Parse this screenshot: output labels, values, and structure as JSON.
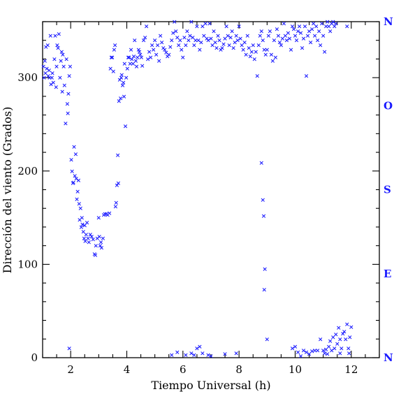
{
  "chart_data": {
    "type": "scatter",
    "title": "",
    "xlabel": "Tiempo Universal (h)",
    "ylabel": "Dirección del viento (Grados)",
    "xlim": [
      1,
      13
    ],
    "ylim": [
      0,
      360
    ],
    "xticks": [
      2,
      4,
      6,
      8,
      10,
      12
    ],
    "yticks": [
      0,
      100,
      200,
      300
    ],
    "right_axis_labels": [
      {
        "value": 0,
        "label": "N"
      },
      {
        "value": 90,
        "label": "E"
      },
      {
        "value": 180,
        "label": "S"
      },
      {
        "value": 270,
        "label": "O"
      },
      {
        "value": 360,
        "label": "N"
      }
    ],
    "grid": false,
    "marker": "x",
    "color": "#1a1aff",
    "series": [
      {
        "points": [
          [
            1.03,
            312
          ],
          [
            1.05,
            300
          ],
          [
            1.08,
            318
          ],
          [
            1.1,
            305
          ],
          [
            1.12,
            333
          ],
          [
            1.15,
            310
          ],
          [
            1.18,
            335
          ],
          [
            1.2,
            302
          ],
          [
            1.23,
            308
          ],
          [
            1.25,
            300
          ],
          [
            1.28,
            345
          ],
          [
            1.3,
            293
          ],
          [
            1.33,
            300
          ],
          [
            1.35,
            305
          ],
          [
            1.38,
            295
          ],
          [
            1.42,
            320
          ],
          [
            1.45,
            345
          ],
          [
            1.48,
            290
          ],
          [
            1.5,
            312
          ],
          [
            1.52,
            335
          ],
          [
            1.55,
            332
          ],
          [
            1.58,
            347
          ],
          [
            1.62,
            300
          ],
          [
            1.65,
            318
          ],
          [
            1.68,
            328
          ],
          [
            1.7,
            285
          ],
          [
            1.72,
            325
          ],
          [
            1.75,
            312
          ],
          [
            1.78,
            292
          ],
          [
            1.82,
            251
          ],
          [
            1.85,
            320
          ],
          [
            1.88,
            272
          ],
          [
            1.9,
            262
          ],
          [
            1.92,
            283
          ],
          [
            1.95,
            302
          ],
          [
            1.98,
            312
          ],
          [
            2.02,
            212
          ],
          [
            2.05,
            200
          ],
          [
            2.08,
            187
          ],
          [
            2.1,
            188
          ],
          [
            2.12,
            226
          ],
          [
            2.15,
            195
          ],
          [
            2.18,
            218
          ],
          [
            2.2,
            192
          ],
          [
            2.22,
            170
          ],
          [
            2.25,
            178
          ],
          [
            2.28,
            190
          ],
          [
            2.3,
            165
          ],
          [
            2.32,
            148
          ],
          [
            2.35,
            160
          ],
          [
            2.38,
            140
          ],
          [
            2.4,
            150
          ],
          [
            2.42,
            143
          ],
          [
            2.45,
            135
          ],
          [
            2.48,
            128
          ],
          [
            2.5,
            142
          ],
          [
            2.52,
            125
          ],
          [
            2.55,
            132
          ],
          [
            2.58,
            145
          ],
          [
            2.62,
            128
          ],
          [
            2.65,
            124
          ],
          [
            2.7,
            132
          ],
          [
            2.75,
            130
          ],
          [
            2.8,
            127
          ],
          [
            2.85,
            111
          ],
          [
            2.88,
            110
          ],
          [
            2.9,
            120
          ],
          [
            2.95,
            128
          ],
          [
            3.0,
            150
          ],
          [
            3.02,
            130
          ],
          [
            3.05,
            120
          ],
          [
            3.08,
            124
          ],
          [
            3.1,
            118
          ],
          [
            3.15,
            128
          ],
          [
            3.18,
            153
          ],
          [
            3.22,
            154
          ],
          [
            3.28,
            154
          ],
          [
            3.32,
            153
          ],
          [
            3.38,
            155
          ],
          [
            3.42,
            310
          ],
          [
            3.45,
            322
          ],
          [
            3.48,
            322
          ],
          [
            3.52,
            307
          ],
          [
            3.55,
            330
          ],
          [
            3.58,
            335
          ],
          [
            3.6,
            162
          ],
          [
            3.62,
            166
          ],
          [
            3.65,
            185
          ],
          [
            3.68,
            217
          ],
          [
            3.7,
            187
          ],
          [
            3.72,
            275
          ],
          [
            3.75,
            298
          ],
          [
            3.78,
            278
          ],
          [
            3.8,
            300
          ],
          [
            3.82,
            303
          ],
          [
            3.85,
            292
          ],
          [
            3.88,
            295
          ],
          [
            3.9,
            280
          ],
          [
            3.92,
            315
          ],
          [
            3.95,
            248
          ],
          [
            3.98,
            300
          ],
          [
            4.02,
            310
          ],
          [
            4.05,
            322
          ],
          [
            4.08,
            322
          ],
          [
            4.12,
            315
          ],
          [
            4.15,
            330
          ],
          [
            4.18,
            320
          ],
          [
            4.22,
            315
          ],
          [
            4.25,
            323
          ],
          [
            4.28,
            340
          ],
          [
            4.32,
            318
          ],
          [
            4.35,
            312
          ],
          [
            4.38,
            322
          ],
          [
            4.42,
            330
          ],
          [
            4.45,
            328
          ],
          [
            4.48,
            325
          ],
          [
            4.52,
            322
          ],
          [
            4.55,
            313
          ],
          [
            4.6,
            340
          ],
          [
            4.65,
            343
          ],
          [
            4.7,
            355
          ],
          [
            4.75,
            320
          ],
          [
            4.8,
            328
          ],
          [
            4.85,
            322
          ],
          [
            4.9,
            335
          ],
          [
            4.95,
            330
          ],
          [
            5.0,
            340
          ],
          [
            5.05,
            325
          ],
          [
            5.1,
            335
          ],
          [
            5.15,
            318
          ],
          [
            5.2,
            345
          ],
          [
            5.25,
            338
          ],
          [
            5.3,
            332
          ],
          [
            5.35,
            330
          ],
          [
            5.4,
            327
          ],
          [
            5.45,
            323
          ],
          [
            5.5,
            325
          ],
          [
            5.55,
            333
          ],
          [
            5.6,
            340
          ],
          [
            5.65,
            348
          ],
          [
            5.7,
            360
          ],
          [
            5.75,
            350
          ],
          [
            5.8,
            343
          ],
          [
            5.85,
            335
          ],
          [
            5.9,
            340
          ],
          [
            5.95,
            330
          ],
          [
            6.0,
            322
          ],
          [
            6.05,
            343
          ],
          [
            6.1,
            335
          ],
          [
            6.15,
            350
          ],
          [
            6.2,
            340
          ],
          [
            6.25,
            345
          ],
          [
            6.3,
            360
          ],
          [
            6.35,
            343
          ],
          [
            6.4,
            335
          ],
          [
            6.45,
            340
          ],
          [
            6.5,
            355
          ],
          [
            6.55,
            340
          ],
          [
            6.6,
            330
          ],
          [
            6.65,
            338
          ],
          [
            6.7,
            355
          ],
          [
            6.75,
            345
          ],
          [
            6.8,
            358
          ],
          [
            6.85,
            342
          ],
          [
            6.9,
            340
          ],
          [
            6.95,
            358
          ],
          [
            7.0,
            342
          ],
          [
            7.05,
            335
          ],
          [
            7.1,
            350
          ],
          [
            7.15,
            338
          ],
          [
            7.2,
            332
          ],
          [
            7.25,
            345
          ],
          [
            7.3,
            340
          ],
          [
            7.35,
            330
          ],
          [
            7.4,
            332
          ],
          [
            7.45,
            336
          ],
          [
            7.5,
            342
          ],
          [
            7.55,
            355
          ],
          [
            7.6,
            345
          ],
          [
            7.65,
            335
          ],
          [
            7.7,
            343
          ],
          [
            7.75,
            350
          ],
          [
            7.8,
            332
          ],
          [
            7.85,
            338
          ],
          [
            7.9,
            345
          ],
          [
            7.95,
            340
          ],
          [
            8.0,
            355
          ],
          [
            8.05,
            342
          ],
          [
            8.1,
            335
          ],
          [
            8.15,
            330
          ],
          [
            8.2,
            338
          ],
          [
            8.25,
            325
          ],
          [
            8.3,
            345
          ],
          [
            8.35,
            332
          ],
          [
            8.4,
            323
          ],
          [
            8.45,
            328
          ],
          [
            8.5,
            335
          ],
          [
            8.55,
            320
          ],
          [
            8.6,
            328
          ],
          [
            8.65,
            302
          ],
          [
            8.7,
            335
          ],
          [
            8.75,
            345
          ],
          [
            8.8,
            350
          ],
          [
            8.85,
            340
          ],
          [
            8.9,
            330
          ],
          [
            8.95,
            325
          ],
          [
            9.0,
            330
          ],
          [
            9.05,
            345
          ],
          [
            9.1,
            350
          ],
          [
            9.15,
            325
          ],
          [
            9.2,
            318
          ],
          [
            9.25,
            340
          ],
          [
            9.3,
            322
          ],
          [
            9.35,
            352
          ],
          [
            9.4,
            345
          ],
          [
            9.45,
            338
          ],
          [
            9.5,
            335
          ],
          [
            9.55,
            342
          ],
          [
            9.6,
            358
          ],
          [
            9.65,
            345
          ],
          [
            9.7,
            340
          ],
          [
            9.75,
            348
          ],
          [
            9.8,
            342
          ],
          [
            9.85,
            330
          ],
          [
            9.9,
            355
          ],
          [
            9.95,
            352
          ],
          [
            10.0,
            345
          ],
          [
            10.05,
            340
          ],
          [
            10.1,
            350
          ],
          [
            10.15,
            355
          ],
          [
            10.2,
            348
          ],
          [
            10.25,
            332
          ],
          [
            10.3,
            342
          ],
          [
            10.35,
            355
          ],
          [
            10.4,
            302
          ],
          [
            10.45,
            345
          ],
          [
            10.5,
            350
          ],
          [
            10.55,
            338
          ],
          [
            10.6,
            352
          ],
          [
            10.65,
            358
          ],
          [
            10.7,
            345
          ],
          [
            10.75,
            355
          ],
          [
            10.8,
            340
          ],
          [
            10.85,
            350
          ],
          [
            10.9,
            335
          ],
          [
            10.95,
            358
          ],
          [
            11.0,
            345
          ],
          [
            11.05,
            328
          ],
          [
            11.1,
            355
          ],
          [
            11.15,
            360
          ],
          [
            11.2,
            355
          ],
          [
            11.25,
            350
          ],
          [
            11.3,
            358
          ],
          [
            11.35,
            360
          ],
          [
            11.4,
            355
          ],
          [
            11.45,
            358
          ],
          [
            11.85,
            355
          ],
          [
            8.8,
            209
          ],
          [
            8.85,
            169
          ],
          [
            8.88,
            152
          ],
          [
            8.92,
            95
          ],
          [
            8.9,
            73
          ],
          [
            9.0,
            20
          ],
          [
            1.95,
            10
          ],
          [
            5.6,
            3
          ],
          [
            5.8,
            6
          ],
          [
            6.1,
            3
          ],
          [
            6.3,
            5
          ],
          [
            6.4,
            3
          ],
          [
            6.5,
            10
          ],
          [
            6.6,
            12
          ],
          [
            6.7,
            5
          ],
          [
            6.9,
            3
          ],
          [
            7.0,
            2
          ],
          [
            7.5,
            4
          ],
          [
            7.9,
            5
          ],
          [
            9.9,
            10
          ],
          [
            10.0,
            12
          ],
          [
            10.1,
            6
          ],
          [
            10.2,
            2
          ],
          [
            10.3,
            8
          ],
          [
            10.4,
            6
          ],
          [
            10.5,
            4
          ],
          [
            10.6,
            7
          ],
          [
            10.7,
            8
          ],
          [
            10.8,
            8
          ],
          [
            10.9,
            20
          ],
          [
            11.0,
            8
          ],
          [
            11.05,
            5
          ],
          [
            11.1,
            9
          ],
          [
            11.15,
            4
          ],
          [
            11.2,
            12
          ],
          [
            11.25,
            18
          ],
          [
            11.3,
            8
          ],
          [
            11.35,
            22
          ],
          [
            11.4,
            10
          ],
          [
            11.45,
            25
          ],
          [
            11.5,
            15
          ],
          [
            11.55,
            32
          ],
          [
            11.6,
            20
          ],
          [
            11.65,
            10
          ],
          [
            11.7,
            26
          ],
          [
            11.75,
            28
          ],
          [
            11.8,
            20
          ],
          [
            11.85,
            36
          ],
          [
            11.9,
            10
          ],
          [
            11.95,
            22
          ],
          [
            12.0,
            33
          ],
          [
            11.92,
            5
          ],
          [
            11.6,
            5
          ]
        ]
      }
    ]
  }
}
